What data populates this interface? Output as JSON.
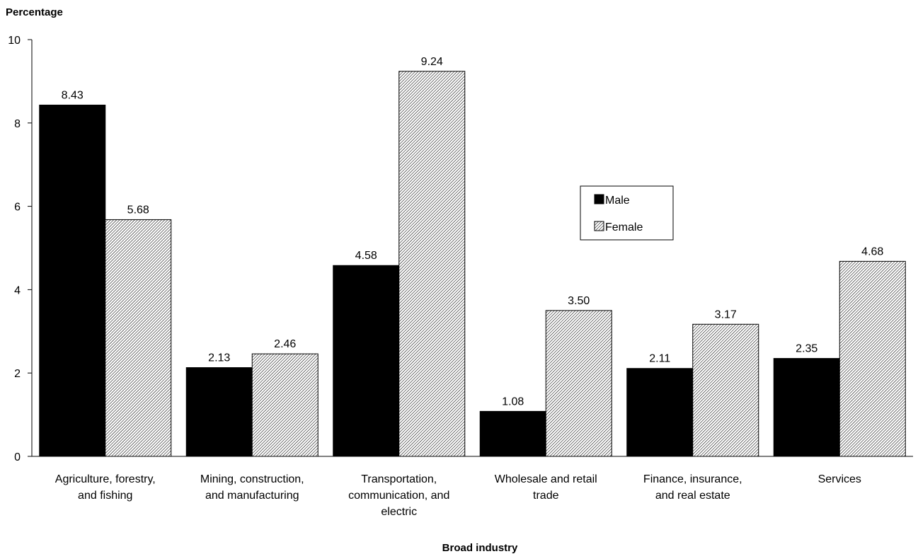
{
  "chart_data": {
    "type": "bar",
    "title": "",
    "ylabel": "Percentage",
    "xlabel": "Broad industry",
    "ylim": [
      0,
      10
    ],
    "yticks": [
      0,
      2,
      4,
      6,
      8,
      10
    ],
    "categories": [
      [
        "Agriculture, forestry,",
        "and fishing"
      ],
      [
        "Mining, construction,",
        "and manufacturing"
      ],
      [
        "Transportation,",
        "communication, and",
        "electric"
      ],
      [
        "Wholesale and retail",
        "trade"
      ],
      [
        "Finance, insurance,",
        "and real estate"
      ],
      [
        "Services"
      ]
    ],
    "series": [
      {
        "name": "Male",
        "values": [
          8.43,
          2.13,
          4.58,
          1.08,
          2.11,
          2.35
        ],
        "labels": [
          "8.43",
          "2.13",
          "4.58",
          "1.08",
          "2.11",
          "2.35"
        ],
        "color": "#000000",
        "pattern": "solid"
      },
      {
        "name": "Female",
        "values": [
          5.68,
          2.46,
          9.24,
          3.5,
          3.17,
          4.68
        ],
        "labels": [
          "5.68",
          "2.46",
          "9.24",
          "3.50",
          "3.17",
          "4.68"
        ],
        "color": "#ffffff",
        "pattern": "diagonal-hatch"
      }
    ],
    "legend": {
      "position": "upper-middle-right"
    },
    "grid": false
  }
}
